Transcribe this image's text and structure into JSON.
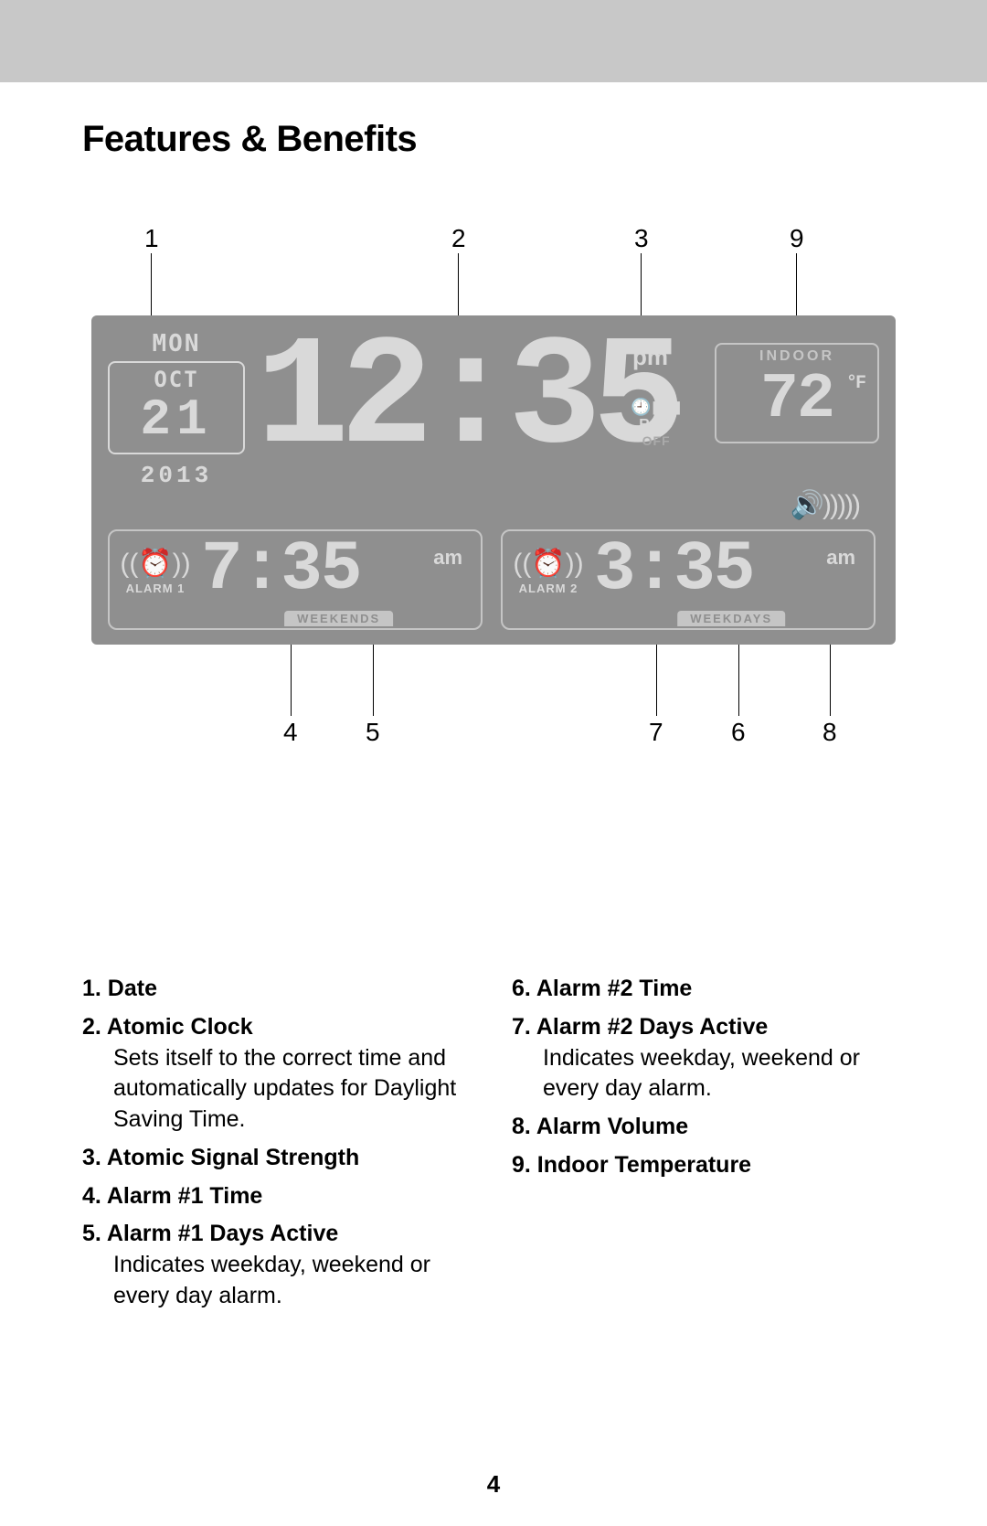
{
  "page": {
    "title": "Features & Benefits",
    "number": "4"
  },
  "colors": {
    "topBar": "#c8c8c8",
    "deviceBg": "#8f8f8f",
    "lcdBright": "#d9d9d9",
    "lcdDim": "#c5c5c5",
    "text": "#000000"
  },
  "callouts": {
    "top": {
      "c1": "1",
      "c2": "2",
      "c3": "3",
      "c9": "9"
    },
    "bottom": {
      "c4": "4",
      "c5": "5",
      "c7": "7",
      "c6": "6",
      "c8": "8"
    }
  },
  "clock": {
    "date": {
      "weekday": "MON",
      "month": "OCT",
      "day": "21",
      "year": "2013"
    },
    "time": {
      "value": "12:35",
      "ampm": "pm"
    },
    "rcc": {
      "icon": "🕘▮▮▮",
      "label": "RCC",
      "off": "OFF"
    },
    "indoor": {
      "label": "INDOOR",
      "temp": "72",
      "unit": "°F"
    },
    "volume": "🔊)))))",
    "alarm1": {
      "label": "ALARM 1",
      "time": "7:35",
      "ampm": "am",
      "days": "WEEKENDS",
      "icon": "((⏰))"
    },
    "alarm2": {
      "label": "ALARM 2",
      "time": "3:35",
      "ampm": "am",
      "days": "WEEKDAYS",
      "icon": "((⏰))"
    }
  },
  "legend": {
    "left": [
      {
        "n": "1.",
        "title": "Date",
        "desc": ""
      },
      {
        "n": "2.",
        "title": "Atomic Clock",
        "desc": "Sets itself to the correct time and automatically updates for Daylight Saving Time."
      },
      {
        "n": "3.",
        "title": "Atomic Signal Strength",
        "desc": ""
      },
      {
        "n": "4.",
        "title": "Alarm #1 Time",
        "desc": ""
      },
      {
        "n": "5.",
        "title": "Alarm #1 Days Active",
        "desc": "Indicates weekday, weekend or every day alarm."
      }
    ],
    "right": [
      {
        "n": "6.",
        "title": "Alarm #2 Time",
        "desc": ""
      },
      {
        "n": "7.",
        "title": "Alarm #2 Days Active",
        "desc": "Indicates weekday, weekend or every day alarm."
      },
      {
        "n": "8.",
        "title": "Alarm Volume",
        "desc": ""
      },
      {
        "n": "9.",
        "title": "Indoor Temperature",
        "desc": ""
      }
    ]
  }
}
